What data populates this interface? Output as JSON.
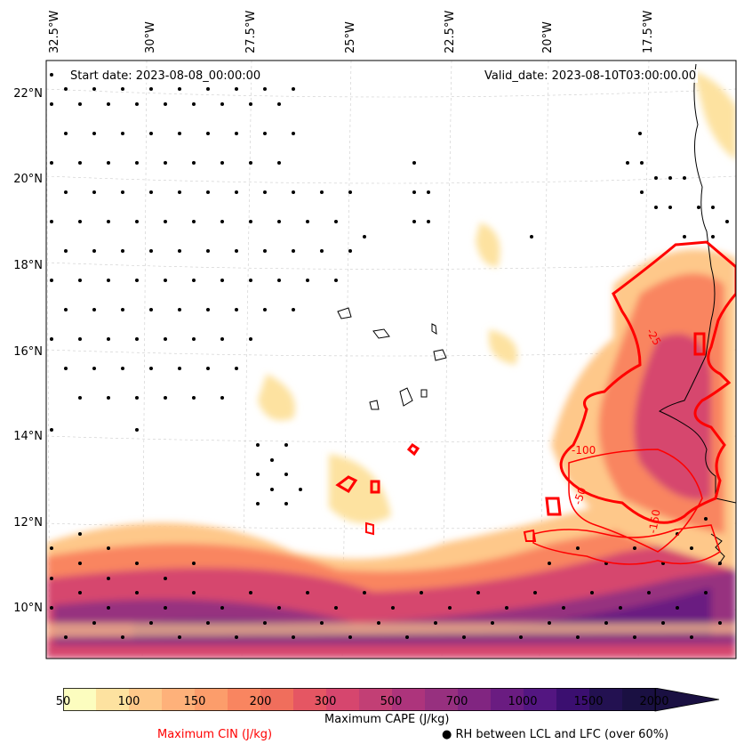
{
  "map": {
    "start_date": "Start date: 2023-08-08_00:00:00",
    "valid_date": "Valid_date: 2023-08-10T03:00:00.00",
    "lon_labels": [
      "32.5°W",
      "30°W",
      "27.5°W",
      "25°W",
      "22.5°W",
      "20°W",
      "17.5°W"
    ],
    "lat_labels": [
      "22°N",
      "20°N",
      "18°N",
      "16°N",
      "14°N",
      "12°N",
      "10°N"
    ],
    "cin_contour_labels": [
      "-25",
      "-100",
      "-50",
      "-150"
    ]
  },
  "legend": {
    "colorbar_ticks": [
      "50",
      "100",
      "150",
      "200",
      "300",
      "500",
      "700",
      "1000",
      "1500",
      "2000"
    ],
    "colorbar_colors": [
      "#fcfdbf",
      "#fde2a0",
      "#fec88a",
      "#feb17a",
      "#fc9d6b",
      "#f98560",
      "#f06e5c",
      "#e55663",
      "#d6466e",
      "#c23f75",
      "#ad347c",
      "#97307f",
      "#812581",
      "#6a1c81",
      "#531681",
      "#3b0f70",
      "#231151",
      "#1a1042"
    ],
    "colorbar_label": "Maximum CAPE (J/kg)",
    "cin_label": "Maximum CIN (J/kg)",
    "cin_color": "#ff0000",
    "rh_label": "● RH between LCL and LFC (over 60%)"
  }
}
